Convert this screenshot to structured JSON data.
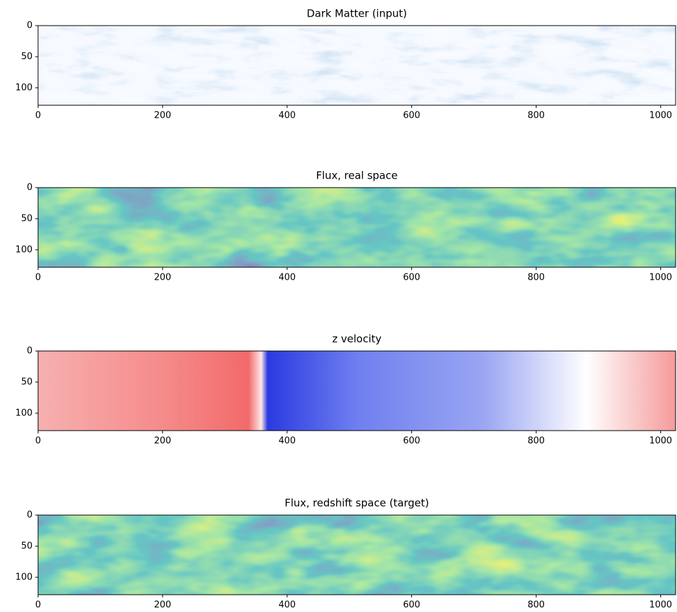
{
  "chart_data": [
    {
      "type": "image",
      "title": "Dark Matter (input)",
      "colormap": "Blues",
      "xlim": [
        0,
        1024
      ],
      "ylim": [
        128,
        0
      ],
      "xticks": [
        0,
        200,
        400,
        600,
        800,
        1000
      ],
      "yticks": [
        0,
        50,
        100
      ]
    },
    {
      "type": "image",
      "title": "Flux, real space",
      "colormap": "viridis",
      "xlim": [
        0,
        1024
      ],
      "ylim": [
        128,
        0
      ],
      "xticks": [
        0,
        200,
        400,
        600,
        800,
        1000
      ],
      "yticks": [
        0,
        50,
        100
      ]
    },
    {
      "type": "image",
      "title": "z velocity",
      "colormap": "bwr",
      "xlim": [
        0,
        1024
      ],
      "ylim": [
        128,
        0
      ],
      "xticks": [
        0,
        200,
        400,
        600,
        800,
        1000
      ],
      "yticks": [
        0,
        50,
        100
      ]
    },
    {
      "type": "image",
      "title": "Flux, redshift space (target)",
      "colormap": "viridis",
      "xlim": [
        0,
        1024
      ],
      "ylim": [
        128,
        0
      ],
      "xticks": [
        0,
        200,
        400,
        600,
        800,
        1000
      ],
      "yticks": [
        0,
        50,
        100
      ]
    }
  ]
}
